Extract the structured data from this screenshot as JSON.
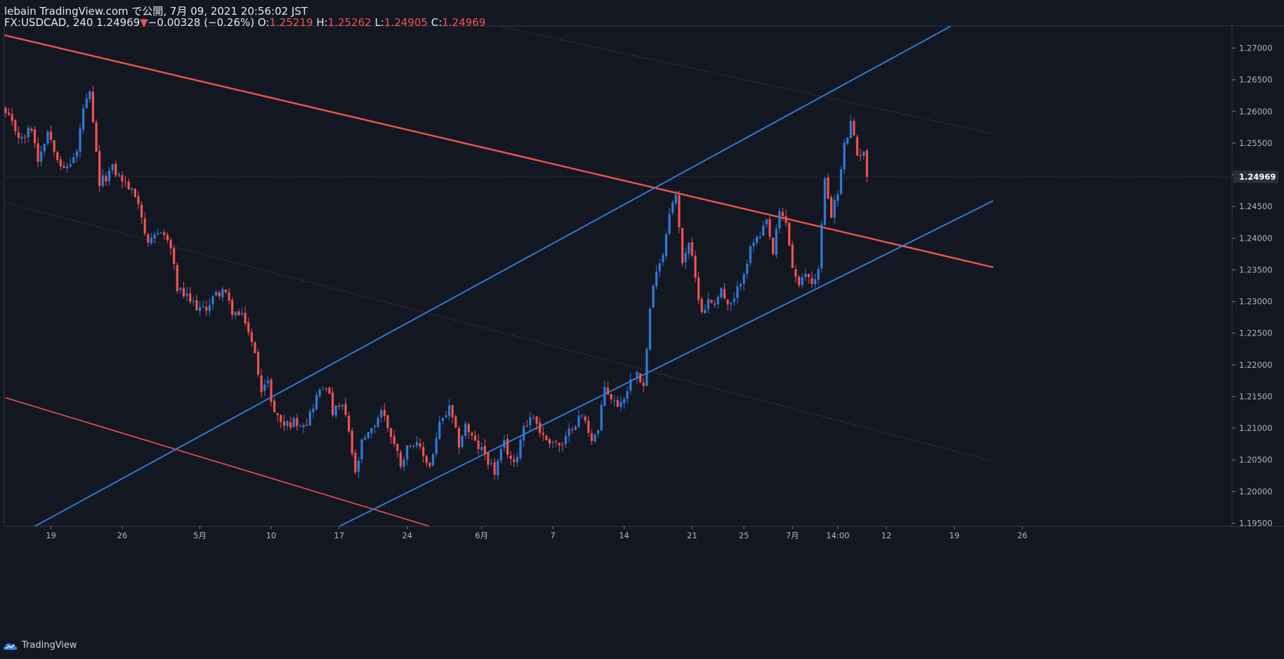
{
  "header": {
    "line1": "lebain TradingView.com で公開, 7月 09, 2021 20:56:02 JST",
    "symbol": "FX:USDCAD, 240",
    "last": "1.24969",
    "change_arrow": "▼",
    "change": "−0.00328 (−0.26%)",
    "o_label": "O:",
    "o": "1.25219",
    "h_label": "H:",
    "h": "1.25262",
    "l_label": "L:",
    "l": "1.24905",
    "c_label": "C:",
    "c": "1.24969"
  },
  "footer": {
    "brand": "TradingView"
  },
  "colors": {
    "background": "#131722",
    "up": "#2f7ad8",
    "down": "#ef5350",
    "channel_blue": "#2f83e0",
    "channel_red": "#ef5350",
    "axis": "#363a45"
  },
  "chart_data": {
    "type": "candlestick",
    "symbol": "FX:USDCAD",
    "timeframe": "240",
    "ylim": [
      1.1945,
      1.2735
    ],
    "y_ticks": [
      "1.27000",
      "1.26500",
      "1.26000",
      "1.25500",
      "1.25000",
      "1.24500",
      "1.24000",
      "1.23500",
      "1.23000",
      "1.22500",
      "1.22000",
      "1.21500",
      "1.21000",
      "1.20500",
      "1.20000",
      "1.19500"
    ],
    "last_price_label": "1.24969",
    "x_ticks": [
      "19",
      "26",
      "5月",
      "10",
      "17",
      "24",
      "6月",
      "7",
      "14",
      "21",
      "25",
      "7月",
      "14:00",
      "12",
      "19",
      "26"
    ],
    "x_tick_bars": [
      14,
      36,
      60,
      82,
      103,
      124,
      147,
      169,
      191,
      212,
      228,
      243,
      257,
      272,
      293,
      314
    ],
    "ohlc": [],
    "path": [
      [
        0,
        1.2595
      ],
      [
        5,
        1.2555
      ],
      [
        8,
        1.2575
      ],
      [
        10,
        1.2525
      ],
      [
        13,
        1.257
      ],
      [
        18,
        1.2505
      ],
      [
        22,
        1.2535
      ],
      [
        24,
        1.2605
      ],
      [
        26,
        1.2625
      ],
      [
        29,
        1.2485
      ],
      [
        33,
        1.251
      ],
      [
        38,
        1.248
      ],
      [
        41,
        1.246
      ],
      [
        44,
        1.2385
      ],
      [
        48,
        1.2415
      ],
      [
        51,
        1.2385
      ],
      [
        53,
        1.232
      ],
      [
        57,
        1.23
      ],
      [
        61,
        1.2285
      ],
      [
        64,
        1.2305
      ],
      [
        67,
        1.232
      ],
      [
        70,
        1.2285
      ],
      [
        74,
        1.227
      ],
      [
        77,
        1.2215
      ],
      [
        79,
        1.2165
      ],
      [
        81,
        1.217
      ],
      [
        83,
        1.2125
      ],
      [
        86,
        1.2105
      ],
      [
        89,
        1.211
      ],
      [
        93,
        1.211
      ],
      [
        96,
        1.215
      ],
      [
        99,
        1.217
      ],
      [
        101,
        1.2125
      ],
      [
        104,
        1.2135
      ],
      [
        106,
        1.2095
      ],
      [
        108,
        1.2025
      ],
      [
        110,
        1.2075
      ],
      [
        113,
        1.2095
      ],
      [
        116,
        1.213
      ],
      [
        119,
        1.209
      ],
      [
        122,
        1.2045
      ],
      [
        125,
        1.208
      ],
      [
        128,
        1.2065
      ],
      [
        131,
        1.204
      ],
      [
        134,
        1.2105
      ],
      [
        137,
        1.213
      ],
      [
        140,
        1.2075
      ],
      [
        142,
        1.2105
      ],
      [
        145,
        1.2075
      ],
      [
        148,
        1.206
      ],
      [
        151,
        1.203
      ],
      [
        154,
        1.2075
      ],
      [
        157,
        1.204
      ],
      [
        160,
        1.2105
      ],
      [
        163,
        1.212
      ],
      [
        166,
        1.2085
      ],
      [
        169,
        1.208
      ],
      [
        172,
        1.207
      ],
      [
        175,
        1.2105
      ],
      [
        178,
        1.212
      ],
      [
        181,
        1.2085
      ],
      [
        183,
        1.2095
      ],
      [
        185,
        1.2165
      ],
      [
        188,
        1.214
      ],
      [
        190,
        1.214
      ],
      [
        193,
        1.2175
      ],
      [
        195,
        1.2195
      ],
      [
        197,
        1.2165
      ],
      [
        199,
        1.2285
      ],
      [
        201,
        1.2355
      ],
      [
        203,
        1.2375
      ],
      [
        205,
        1.2445
      ],
      [
        207,
        1.2465
      ],
      [
        209,
        1.2365
      ],
      [
        211,
        1.2395
      ],
      [
        213,
        1.2335
      ],
      [
        215,
        1.2285
      ],
      [
        217,
        1.23
      ],
      [
        219,
        1.23
      ],
      [
        221,
        1.232
      ],
      [
        223,
        1.229
      ],
      [
        225,
        1.23
      ],
      [
        227,
        1.2335
      ],
      [
        229,
        1.2365
      ],
      [
        231,
        1.2395
      ],
      [
        233,
        1.24
      ],
      [
        235,
        1.2425
      ],
      [
        237,
        1.2375
      ],
      [
        239,
        1.244
      ],
      [
        241,
        1.2425
      ],
      [
        243,
        1.2355
      ],
      [
        245,
        1.232
      ],
      [
        247,
        1.2345
      ],
      [
        249,
        1.233
      ],
      [
        251,
        1.235
      ],
      [
        253,
        1.249
      ],
      [
        255,
        1.244
      ],
      [
        257,
        1.247
      ],
      [
        259,
        1.2545
      ],
      [
        261,
        1.258
      ],
      [
        263,
        1.253
      ],
      [
        265,
        1.254
      ],
      [
        266,
        1.2497
      ]
    ],
    "lines": [
      {
        "name": "",
        "color": "#ef5350",
        "style": "solid",
        "width": 2.4,
        "p1": [
          -25,
          1.275
        ],
        "p2": [
          305,
          1.2354
        ]
      },
      {
        "name": "",
        "color": "#ef5350",
        "style": "solid",
        "width": 1.6,
        "p1": [
          0,
          1.2148
        ],
        "p2": [
          131,
          1.1945
        ]
      },
      {
        "name": "",
        "color": "#ef5350",
        "style": "dotted",
        "width": 0.9,
        "p1": [
          0,
          1.2456
        ],
        "p2": [
          305,
          1.2048
        ]
      },
      {
        "name": "",
        "color": "#ef5350",
        "style": "dotted",
        "width": 0.9,
        "p1": [
          152,
          1.2735
        ],
        "p2": [
          305,
          1.2565
        ]
      },
      {
        "name": "",
        "color": "#2f83e0",
        "style": "solid",
        "width": 1.8,
        "p1": [
          9,
          1.1945
        ],
        "p2": [
          292,
          1.2735
        ]
      },
      {
        "name": "",
        "color": "#2f83e0",
        "style": "solid",
        "width": 1.8,
        "p1": [
          103,
          1.1945
        ],
        "p2": [
          305,
          1.2459
        ]
      }
    ],
    "hline": {
      "price": 1.24969,
      "color": "#ef5350",
      "style": "dotted"
    },
    "grid": false,
    "legend": "none"
  }
}
